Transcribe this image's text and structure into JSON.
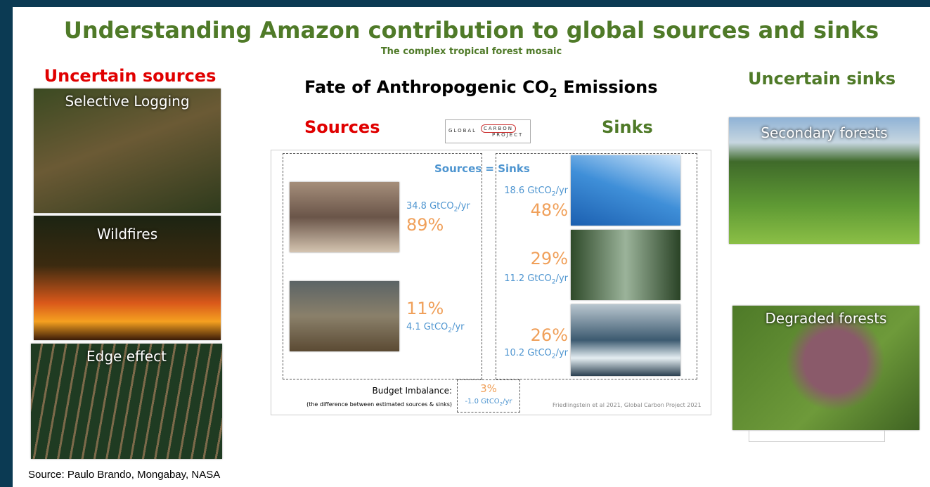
{
  "header": {
    "title": "Understanding Amazon contribution to global sources and sinks",
    "subtitle": "The complex tropical forest mosaic"
  },
  "left": {
    "heading": "Uncertain sources",
    "photos": [
      "Selective Logging",
      "Wildfires",
      "Edge effect"
    ],
    "credit": "Source: Paulo Brando, Mongabay, NASA"
  },
  "center": {
    "title": {
      "text": "Fate of Anthropogenic CO",
      "sub": "2",
      "after": " Emissions"
    },
    "sources_label": "Sources",
    "sinks_label": "Sinks",
    "logo": {
      "top": "GLOBAL",
      "mid": "CARBON",
      "bottom": "PROJECT"
    },
    "equation": [
      "Sources",
      "=",
      "Sinks"
    ],
    "sources": [
      {
        "value": "34.8 GtCO",
        "sub": "2",
        "suffix": "/yr",
        "share": "89%"
      },
      {
        "value": "4.1 GtCO",
        "sub": "2",
        "suffix": "/yr",
        "share": "11%"
      }
    ],
    "sinks": [
      {
        "value": "18.6 GtCO",
        "sub": "2",
        "suffix": "/yr",
        "share": "48%"
      },
      {
        "value": "11.2 GtCO",
        "sub": "2",
        "suffix": "/yr",
        "share": "29%"
      },
      {
        "value": "10.2 GtCO",
        "sub": "2",
        "suffix": "/yr",
        "share": "26%"
      }
    ],
    "imbalance": {
      "label": "Budget Imbalance:",
      "note": "(the difference between estimated sources & sinks)",
      "share": "3%",
      "value": "-1.0 GtCO",
      "sub": "2",
      "suffix": "/yr"
    },
    "citation": "Friedlingstein et al 2021, Global Carbon Project 2021"
  },
  "right": {
    "heading": "Uncertain sinks",
    "photos": [
      "Secondary forests",
      "Degraded forests"
    ]
  }
}
